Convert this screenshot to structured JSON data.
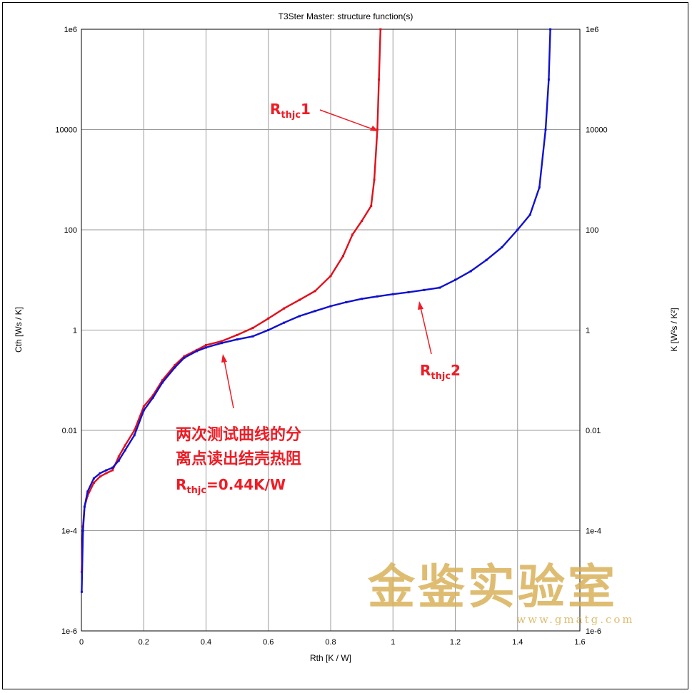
{
  "chart_data": {
    "type": "line",
    "title": "T3Ster Master: structure function(s)",
    "xlabel": "Rth [K / W]",
    "ylabel": "Cth [Ws / K]",
    "y2label": "K [W²s / K²]",
    "xlim": [
      0,
      1.6
    ],
    "ylim": [
      1e-06,
      1000000.0
    ],
    "y_scale": "log",
    "grid": true,
    "x_ticks": [
      "0",
      "0.2",
      "0.4",
      "0.6",
      "0.8",
      "1",
      "1.2",
      "1.4",
      "1.6"
    ],
    "y_ticks": [
      "1e-6",
      "1e-4",
      "0.01",
      "1",
      "100",
      "10000",
      "1e6"
    ],
    "series": [
      {
        "name": "Rthjc1",
        "color": "#e0101a",
        "points": [
          [
            0.001,
            1.5e-05
          ],
          [
            0.005,
            0.00012
          ],
          [
            0.01,
            0.0003
          ],
          [
            0.02,
            0.0005
          ],
          [
            0.04,
            0.0009
          ],
          [
            0.06,
            0.0012
          ],
          [
            0.08,
            0.0014
          ],
          [
            0.1,
            0.0016
          ],
          [
            0.12,
            0.003
          ],
          [
            0.14,
            0.005
          ],
          [
            0.17,
            0.01
          ],
          [
            0.2,
            0.03
          ],
          [
            0.23,
            0.05
          ],
          [
            0.26,
            0.1
          ],
          [
            0.3,
            0.2
          ],
          [
            0.33,
            0.3
          ],
          [
            0.37,
            0.4
          ],
          [
            0.4,
            0.5
          ],
          [
            0.45,
            0.6
          ],
          [
            0.5,
            0.8
          ],
          [
            0.55,
            1.1
          ],
          [
            0.6,
            1.7
          ],
          [
            0.65,
            2.7
          ],
          [
            0.7,
            4
          ],
          [
            0.75,
            6
          ],
          [
            0.8,
            12
          ],
          [
            0.84,
            30
          ],
          [
            0.87,
            80
          ],
          [
            0.9,
            150
          ],
          [
            0.93,
            300
          ],
          [
            0.94,
            1000.0
          ],
          [
            0.95,
            10000.0
          ],
          [
            0.955,
            100000.0
          ],
          [
            0.96,
            1000000.0
          ]
        ]
      },
      {
        "name": "Rthjc2",
        "color": "#1010d0",
        "points": [
          [
            0.001,
            6e-06
          ],
          [
            0.005,
            0.0001
          ],
          [
            0.01,
            0.0003
          ],
          [
            0.02,
            0.0006
          ],
          [
            0.04,
            0.0011
          ],
          [
            0.06,
            0.0014
          ],
          [
            0.08,
            0.0016
          ],
          [
            0.1,
            0.0018
          ],
          [
            0.12,
            0.0025
          ],
          [
            0.14,
            0.004
          ],
          [
            0.17,
            0.008
          ],
          [
            0.2,
            0.025
          ],
          [
            0.23,
            0.045
          ],
          [
            0.26,
            0.09
          ],
          [
            0.3,
            0.18
          ],
          [
            0.33,
            0.28
          ],
          [
            0.37,
            0.38
          ],
          [
            0.4,
            0.45
          ],
          [
            0.45,
            0.55
          ],
          [
            0.5,
            0.65
          ],
          [
            0.55,
            0.75
          ],
          [
            0.6,
            1.0
          ],
          [
            0.65,
            1.4
          ],
          [
            0.7,
            1.9
          ],
          [
            0.75,
            2.4
          ],
          [
            0.8,
            3.0
          ],
          [
            0.85,
            3.6
          ],
          [
            0.9,
            4.2
          ],
          [
            0.95,
            4.7
          ],
          [
            1.0,
            5.2
          ],
          [
            1.05,
            5.7
          ],
          [
            1.1,
            6.3
          ],
          [
            1.15,
            7
          ],
          [
            1.2,
            10
          ],
          [
            1.25,
            15
          ],
          [
            1.3,
            25
          ],
          [
            1.35,
            45
          ],
          [
            1.4,
            100
          ],
          [
            1.44,
            200
          ],
          [
            1.47,
            700
          ],
          [
            1.49,
            10000.0
          ],
          [
            1.5,
            100000.0
          ],
          [
            1.505,
            1000000.0
          ]
        ]
      }
    ],
    "annotations": [
      {
        "main": "R",
        "sub": "thjc",
        "tail": "1"
      },
      {
        "main": "R",
        "sub": "thjc",
        "tail": "2"
      },
      {
        "line1": "两次测试曲线的分",
        "line2": "离点读出结壳热阻",
        "main": "R",
        "sub": "thjc",
        "tail": "=0.44K/W"
      }
    ]
  },
  "watermark": {
    "text": "金鉴实验室",
    "url": "www.gmatg.com"
  }
}
